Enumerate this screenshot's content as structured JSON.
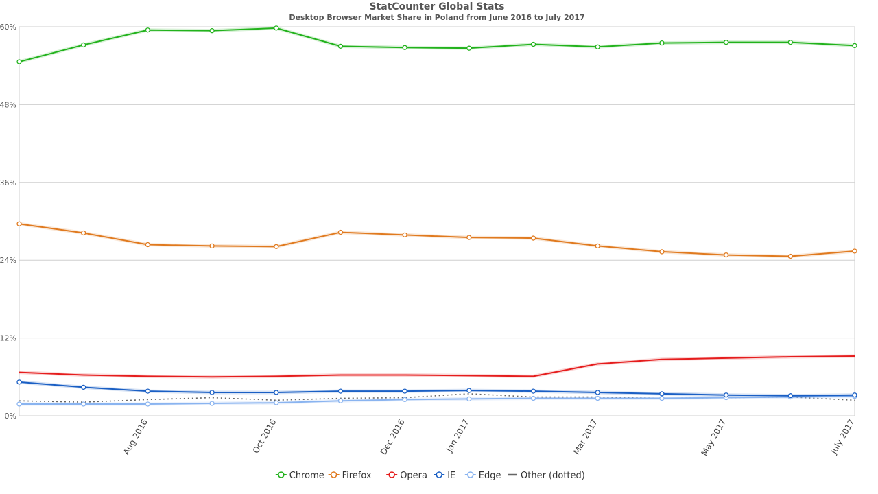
{
  "chart_data": {
    "type": "line",
    "title": "StatCounter Global Stats",
    "subtitle": "Desktop Browser Market Share in Poland from June 2016 to July 2017",
    "ylim": [
      0,
      60
    ],
    "y_ticks": [
      0,
      12,
      24,
      36,
      48,
      60
    ],
    "y_tick_labels": [
      "0%",
      "12%",
      "24%",
      "36%",
      "48%",
      "60%"
    ],
    "x": [
      "2016-06",
      "2016-07",
      "2016-08",
      "2016-09",
      "2016-10",
      "2016-11",
      "2016-12",
      "2017-01",
      "2017-02",
      "2017-03",
      "2017-04",
      "2017-05",
      "2017-06",
      "2017-07"
    ],
    "x_tick_labels": [
      {
        "index": 2,
        "label": "Aug 2016"
      },
      {
        "index": 4,
        "label": "Oct 2016"
      },
      {
        "index": 6,
        "label": "Dec 2016"
      },
      {
        "index": 7,
        "label": "Jan 2017"
      },
      {
        "index": 9,
        "label": "Mar 2017"
      },
      {
        "index": 11,
        "label": "May 2017"
      },
      {
        "index": 13,
        "label": "July 2017"
      }
    ],
    "grid": true,
    "legend_position": "bottom",
    "series": [
      {
        "name": "Chrome",
        "color": "#22b21c",
        "style": "solid",
        "markers": true,
        "values": [
          54.6,
          57.2,
          59.5,
          59.4,
          59.8,
          57.0,
          56.8,
          56.7,
          57.3,
          56.9,
          57.5,
          57.6,
          57.6,
          57.1
        ]
      },
      {
        "name": "Firefox",
        "color": "#e07a1f",
        "style": "solid",
        "markers": true,
        "values": [
          29.6,
          28.2,
          26.4,
          26.2,
          26.1,
          28.3,
          27.9,
          27.5,
          27.4,
          26.2,
          25.3,
          24.8,
          24.6,
          25.4
        ]
      },
      {
        "name": "Opera",
        "color": "#e51d1d",
        "style": "solid",
        "markers": false,
        "values": [
          6.7,
          6.3,
          6.1,
          6.0,
          6.1,
          6.3,
          6.3,
          6.2,
          6.1,
          8.0,
          8.7,
          8.9,
          9.1,
          9.2
        ]
      },
      {
        "name": "IE",
        "color": "#1a5fc4",
        "style": "solid",
        "markers": true,
        "values": [
          5.2,
          4.4,
          3.8,
          3.6,
          3.6,
          3.8,
          3.8,
          3.9,
          3.8,
          3.6,
          3.4,
          3.2,
          3.1,
          3.2
        ]
      },
      {
        "name": "Edge",
        "color": "#8ab4f0",
        "style": "solid",
        "markers": true,
        "values": [
          1.8,
          1.8,
          1.8,
          1.9,
          2.0,
          2.3,
          2.5,
          2.6,
          2.7,
          2.7,
          2.7,
          2.8,
          2.9,
          3.0
        ]
      },
      {
        "name": "Other (dotted)",
        "color": "#666666",
        "style": "dotted",
        "markers": false,
        "values": [
          2.3,
          2.1,
          2.5,
          2.8,
          2.4,
          2.7,
          2.8,
          3.4,
          2.9,
          2.9,
          2.7,
          2.8,
          2.9,
          2.4
        ]
      }
    ]
  }
}
